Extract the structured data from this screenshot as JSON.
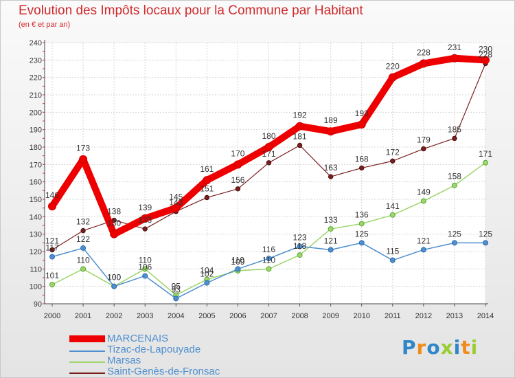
{
  "page": {
    "title": "Evolution des Impôts locaux pour la Commune par Habitant",
    "subtitle": "(en € et par an)"
  },
  "chart_data": {
    "type": "line",
    "x": [
      "2000",
      "2001",
      "2002",
      "2003",
      "2004",
      "2005",
      "2006",
      "2007",
      "2008",
      "2009",
      "2010",
      "2011",
      "2012",
      "2013",
      "2014"
    ],
    "ylim": [
      90,
      240
    ],
    "yticks": [
      90,
      100,
      110,
      120,
      130,
      140,
      150,
      160,
      170,
      180,
      190,
      200,
      210,
      220,
      230,
      240
    ],
    "grid": true,
    "legend_position": "bottom-left",
    "series": [
      {
        "name": "Saint-Genès-de-Fronsac",
        "color": "#7a1f1f",
        "values": [
          121,
          132,
          138,
          133,
          143,
          151,
          156,
          171,
          181,
          163,
          168,
          172,
          179,
          185,
          228
        ]
      },
      {
        "name": "Marsas",
        "color": "#9dd66a",
        "values": [
          101,
          110,
          100,
          110,
          95,
          104,
          109,
          110,
          118,
          133,
          136,
          141,
          149,
          158,
          171
        ]
      },
      {
        "name": "Tizac-de-Lapouyade",
        "color": "#4f8fcf",
        "values": [
          117,
          122,
          100,
          106,
          93,
          102,
          110,
          116,
          123,
          121,
          125,
          115,
          121,
          125,
          125
        ]
      },
      {
        "name": "MARCENAIS",
        "color": "#ee0000",
        "values": [
          146,
          173,
          130,
          139,
          145,
          161,
          170,
          180,
          192,
          189,
          193,
          220,
          228,
          231,
          230
        ]
      }
    ]
  },
  "legend": [
    {
      "label": "MARCENAIS",
      "color": "#ee0000"
    },
    {
      "label": "Tizac-de-Lapouyade",
      "color": "#4f8fcf"
    },
    {
      "label": "Marsas",
      "color": "#9dd66a"
    },
    {
      "label": "Saint-Genès-de-Fronsac",
      "color": "#7a1f1f"
    }
  ],
  "logo": {
    "letters": [
      "P",
      "r",
      "o",
      "x",
      "i",
      "t",
      "i"
    ],
    "colors": [
      "#2f86c8",
      "#f08a1c",
      "#2f86c8",
      "#9acd32",
      "#2f86c8",
      "#f08a1c",
      "#9acd32"
    ]
  }
}
